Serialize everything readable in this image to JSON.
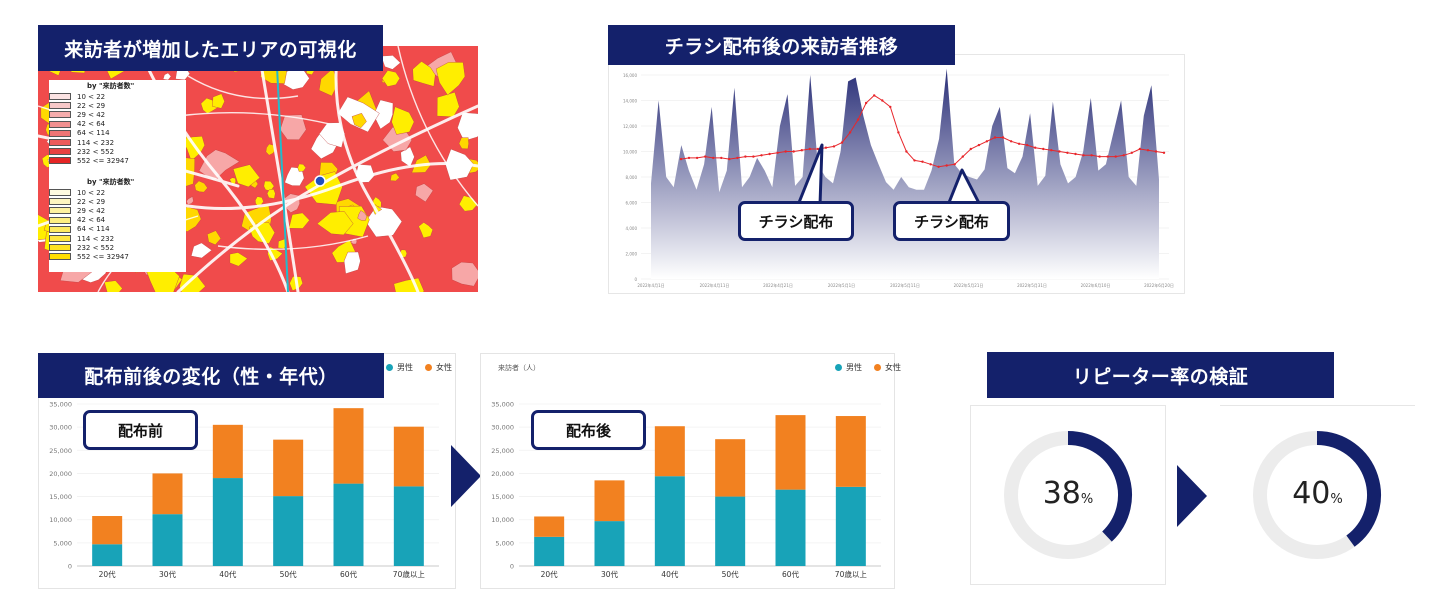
{
  "map_section": {
    "title": "来訪者が増加したエリアの可視化",
    "legend_header": "by \"来訪者数\"",
    "legend_ranges": [
      "10 < 22",
      "22 < 29",
      "29 < 42",
      "42 < 64",
      "64 < 114",
      "114 < 232",
      "232 < 552",
      "552 <= 32947"
    ],
    "legend_red_colors": [
      "#fbe3e3",
      "#f8c8c8",
      "#f5acac",
      "#f29090",
      "#ef7575",
      "#ec5a5a",
      "#e94040",
      "#e52525"
    ],
    "legend_yellow_colors": [
      "#fffbe0",
      "#fff6c0",
      "#fff2a0",
      "#ffee80",
      "#ffea60",
      "#ffe640",
      "#ffe220",
      "#ffdd00"
    ],
    "primary_color": "#f04b4b",
    "secondary_color": "#ffee00"
  },
  "trend_section": {
    "title": "チラシ配布後の来訪者推移",
    "callouts": [
      "チラシ配布",
      "チラシ配布"
    ]
  },
  "bar_section": {
    "title": "配布前後の変化（性・年代）",
    "before_label": "配布前",
    "after_label": "配布後",
    "legend_male": "男性",
    "legend_female": "女性",
    "after_ylabel": "来訪者（人）"
  },
  "repeat_section": {
    "title": "リピーター率の検証",
    "before": {
      "value": "38",
      "unit": "%",
      "fraction": 0.38
    },
    "after": {
      "value": "40",
      "unit": "%",
      "fraction": 0.4
    }
  },
  "colors": {
    "navy": "#14216b",
    "male": "#18a3b8",
    "female": "#f28120",
    "area": "#2a2f78",
    "line": "#e8262b",
    "ring_bg": "#ececec"
  },
  "chart_data": [
    {
      "type": "area",
      "title": "チラシ配布後の来訪者推移",
      "ylim": [
        0,
        16000
      ],
      "y_ticks": [
        "0",
        "2,000",
        "4,000",
        "6,000",
        "8,000",
        "10,000",
        "12,000",
        "14,000",
        "16,000"
      ],
      "x_ticks": [
        "2022年4月1日",
        "2022年4月11日",
        "2022年4月21日",
        "2022年5月1日",
        "2022年5月11日",
        "2022年5月21日",
        "2022年5月31日",
        "2022年6月10日",
        "2022年6月20日"
      ],
      "series": [
        {
          "values": [
            7500,
            14000,
            8000,
            7200,
            10500,
            8500,
            7000,
            9000,
            13500,
            6800,
            8500,
            15000,
            7200,
            8000,
            9500,
            8500,
            7200,
            12000,
            14500,
            7300,
            8000,
            16000,
            9000,
            8000,
            7500,
            10000,
            15500,
            15800,
            12800,
            10500,
            9000,
            7600,
            7000,
            8000,
            7200,
            7000,
            7000,
            8500,
            11000,
            16500,
            9000,
            8300,
            8000,
            7800,
            8600,
            12000,
            13500,
            8700,
            8300,
            9600,
            13000,
            7300,
            8100,
            13900,
            9000,
            7500,
            8000,
            10000,
            14200,
            8500,
            9000,
            11500,
            14000,
            8000,
            7300,
            12800,
            15200,
            7800
          ]
        },
        {
          "values": [
            9400,
            9500,
            9500,
            9600,
            9500,
            9500,
            9400,
            9500,
            9600,
            9600,
            9700,
            9800,
            9900,
            10000,
            10000,
            10100,
            10200,
            10200,
            10300,
            10400,
            10700,
            11500,
            12500,
            13800,
            14400,
            14000,
            13500,
            11500,
            10000,
            9300,
            9200,
            9000,
            8800,
            8900,
            9000,
            9600,
            10200,
            10500,
            10800,
            11100,
            11100,
            10800,
            10600,
            10500,
            10300,
            10200,
            10100,
            10000,
            9900,
            9800,
            9700,
            9700,
            9600,
            9600,
            9600,
            9700,
            9900,
            10200,
            10100,
            10000,
            9900
          ]
        }
      ]
    },
    {
      "type": "bar",
      "title": "配布前",
      "categories": [
        "20代",
        "30代",
        "40代",
        "50代",
        "60代",
        "70歳以上"
      ],
      "ylim": [
        0,
        35000
      ],
      "y_ticks": [
        "0",
        "5,000",
        "10,000",
        "15,000",
        "20,000",
        "25,000",
        "30,000",
        "35,000"
      ],
      "series": [
        {
          "name": "男性",
          "values": [
            4700,
            11200,
            19000,
            15100,
            17800,
            17200
          ]
        },
        {
          "name": "女性",
          "values": [
            6100,
            8800,
            11500,
            12200,
            16300,
            12900
          ]
        }
      ]
    },
    {
      "type": "bar",
      "title": "配布後",
      "ylabel": "来訪者（人）",
      "categories": [
        "20代",
        "30代",
        "40代",
        "50代",
        "60代",
        "70歳以上"
      ],
      "ylim": [
        0,
        35000
      ],
      "y_ticks": [
        "0",
        "5,000",
        "10,000",
        "15,000",
        "20,000",
        "25,000",
        "30,000",
        "35,000"
      ],
      "series": [
        {
          "name": "男性",
          "values": [
            6300,
            9700,
            19400,
            15000,
            16500,
            17100
          ]
        },
        {
          "name": "女性",
          "values": [
            4400,
            8800,
            10800,
            12400,
            16100,
            15300
          ]
        }
      ]
    },
    {
      "type": "pie",
      "categories": [
        "before",
        "after"
      ],
      "values": [
        38,
        40
      ]
    }
  ]
}
